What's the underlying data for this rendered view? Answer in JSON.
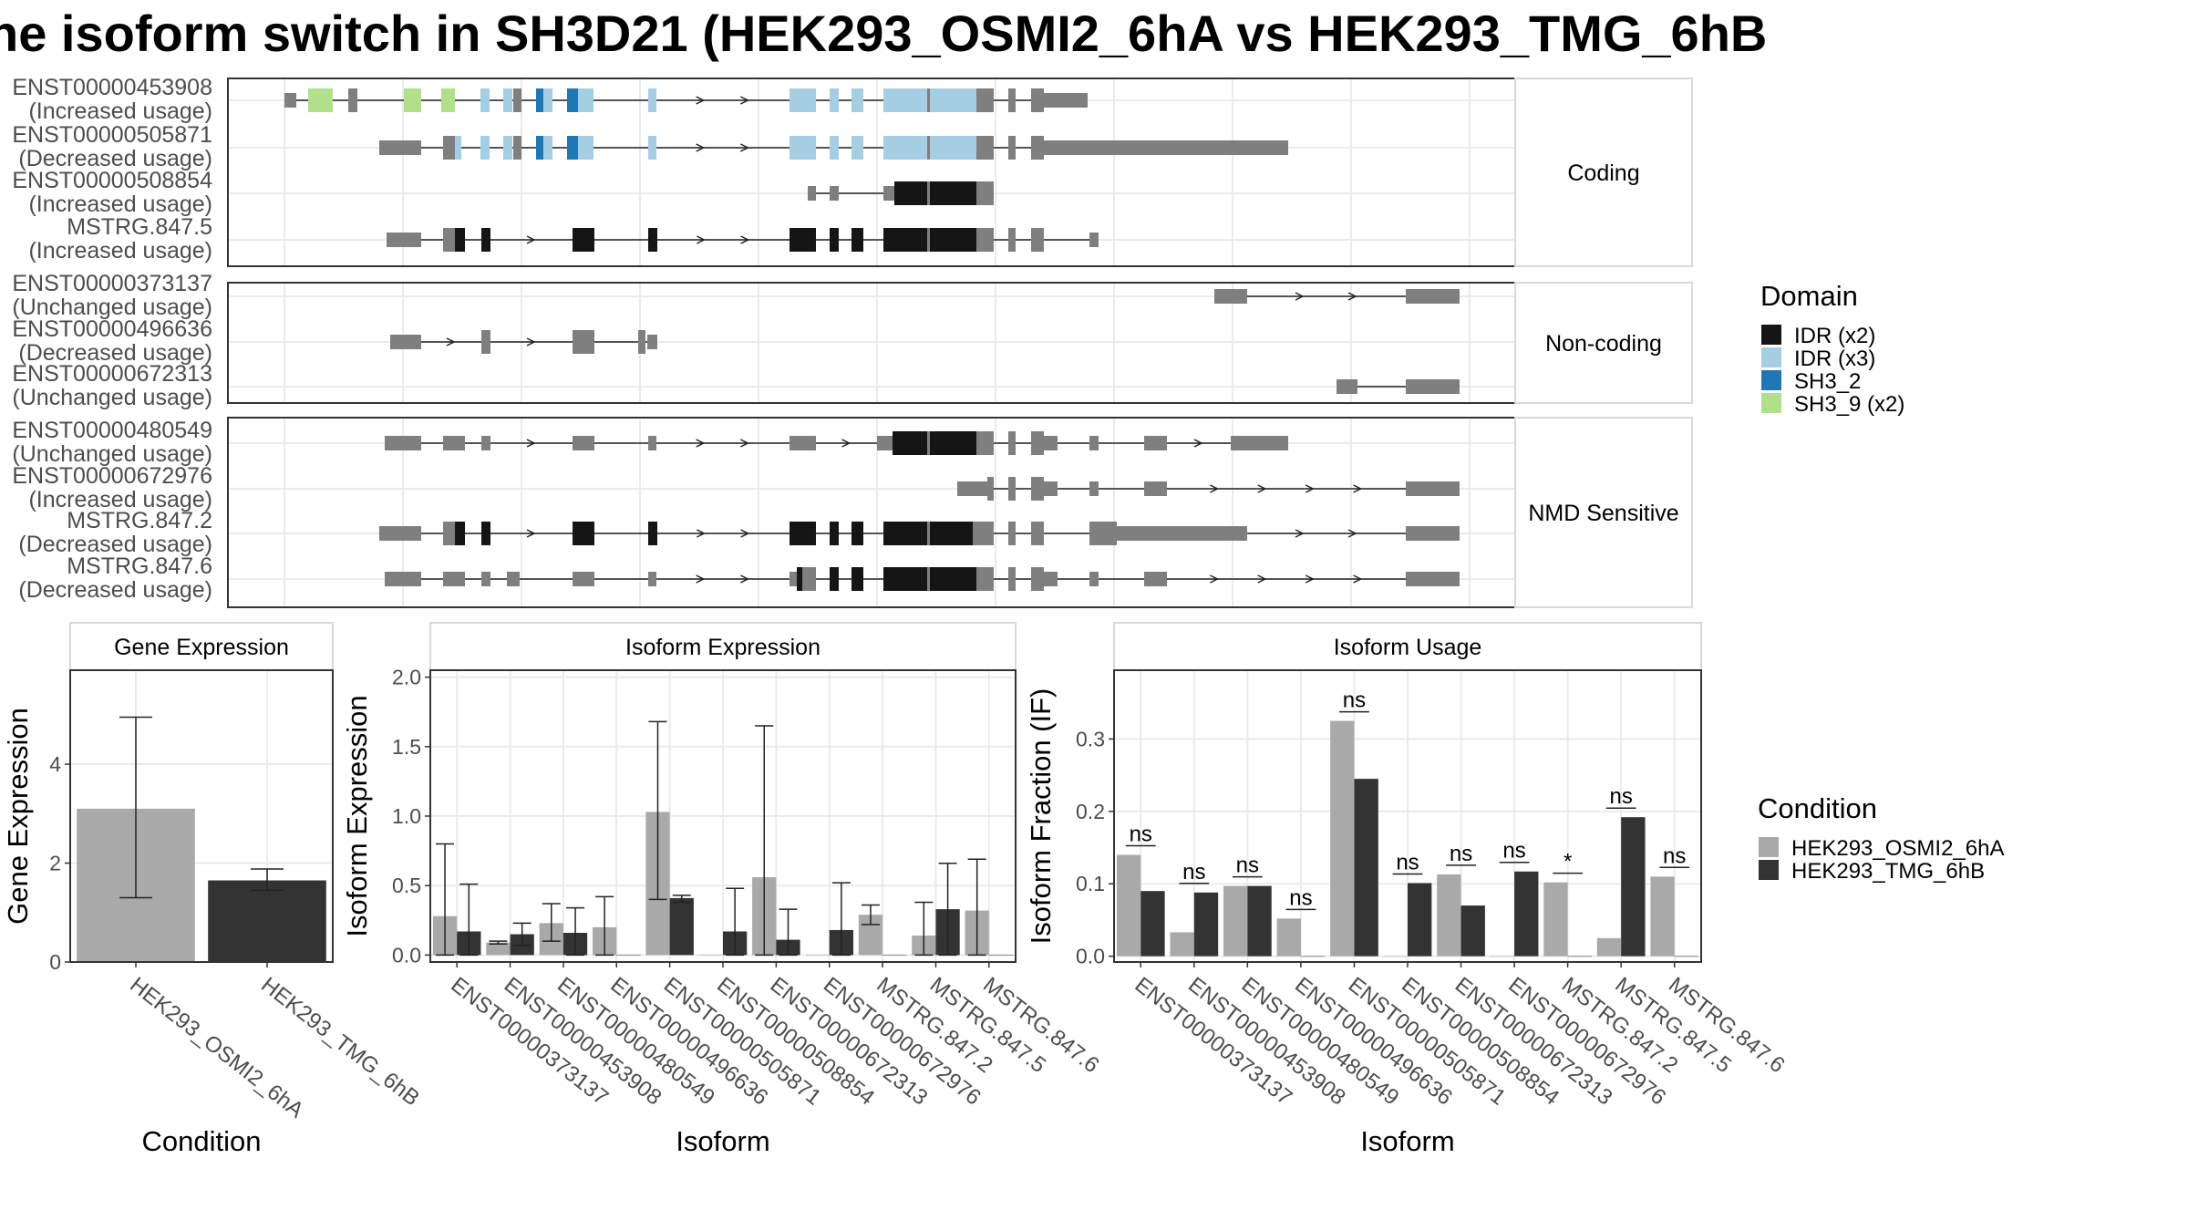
{
  "title": "he isoform switch in SH3D21 (HEK293_OSMI2_6hA vs HEK293_TMG_6hB",
  "colors": {
    "cond_a": "#A9A9A9",
    "cond_b": "#333333",
    "structure_gray": "#7F7F7F",
    "domains": {
      "IDR (x2)": "#151515",
      "IDR (x3)": "#A6CEE3",
      "SH3_2": "#1F78B4",
      "SH3_9 (x2)": "#B2DF8A"
    }
  },
  "legends": {
    "domain": {
      "title": "Domain",
      "items": [
        "IDR (x2)",
        "IDR (x3)",
        "SH3_2",
        "SH3_9 (x2)"
      ]
    },
    "condition": {
      "title": "Condition",
      "items": [
        "HEK293_OSMI2_6hA",
        "HEK293_TMG_6hB"
      ]
    }
  },
  "structure": {
    "panels": [
      {
        "label": "Coding",
        "transcripts": [
          {
            "id": "ENST00000453908",
            "status": "(Increased usage)"
          },
          {
            "id": "ENST00000505871",
            "status": "(Decreased usage)"
          },
          {
            "id": "ENST00000508854",
            "status": "(Increased usage)"
          },
          {
            "id": "MSTRG.847.5",
            "status": "(Increased usage)"
          }
        ]
      },
      {
        "label": "Non-coding",
        "transcripts": [
          {
            "id": "ENST00000373137",
            "status": "(Unchanged usage)"
          },
          {
            "id": "ENST00000496636",
            "status": "(Decreased usage)"
          },
          {
            "id": "ENST00000672313",
            "status": "(Unchanged usage)"
          }
        ]
      },
      {
        "label": "NMD Sensitive",
        "transcripts": [
          {
            "id": "ENST00000480549",
            "status": "(Unchanged usage)"
          },
          {
            "id": "ENST00000672976",
            "status": "(Increased usage)"
          },
          {
            "id": "MSTRG.847.2",
            "status": "(Decreased usage)"
          },
          {
            "id": "MSTRG.847.6",
            "status": "(Decreased usage)"
          }
        ]
      }
    ]
  },
  "chart_data": [
    {
      "type": "bar",
      "title": "Gene Expression",
      "xlabel": "Condition",
      "ylabel": "Gene Expression",
      "ylim": [
        0,
        5.9
      ],
      "yticks": [
        0,
        2,
        4
      ],
      "categories": [
        "HEK293_OSMI2_6hA",
        "HEK293_TMG_6hB"
      ],
      "values": [
        3.1,
        1.65
      ],
      "error_low": [
        1.3,
        1.45
      ],
      "error_high": [
        4.95,
        1.88
      ]
    },
    {
      "type": "bar",
      "title": "Isoform Expression",
      "xlabel": "Isoform",
      "ylabel": "Isoform Expression",
      "ylim": [
        -0.05,
        2.05
      ],
      "yticks": [
        0.0,
        0.5,
        1.0,
        1.5,
        2.0
      ],
      "tick_labels": [
        "0.0",
        "0.5",
        "1.0",
        "1.5",
        "2.0"
      ],
      "categories": [
        "ENST00000373137",
        "ENST00000453908",
        "ENST00000480549",
        "ENST00000496636",
        "ENST00000505871",
        "ENST00000508854",
        "ENST00000672313",
        "ENST00000672976",
        "MSTRG.847.2",
        "MSTRG.847.5",
        "MSTRG.847.6"
      ],
      "series": [
        {
          "name": "HEK293_OSMI2_6hA",
          "values": [
            0.28,
            0.09,
            0.23,
            0.2,
            1.03,
            0.0,
            0.56,
            0.0,
            0.29,
            0.14,
            0.32
          ],
          "error_low": [
            0.0,
            0.08,
            0.1,
            0.0,
            0.4,
            null,
            0.0,
            null,
            0.22,
            0.0,
            0.0
          ],
          "error_high": [
            0.8,
            0.1,
            0.37,
            0.42,
            1.68,
            null,
            1.65,
            null,
            0.36,
            0.38,
            0.69
          ]
        },
        {
          "name": "HEK293_TMG_6hB",
          "values": [
            0.17,
            0.15,
            0.16,
            0.0,
            0.41,
            0.17,
            0.11,
            0.18,
            0.0,
            0.33,
            0.0
          ],
          "error_low": [
            0.0,
            0.07,
            0.0,
            null,
            0.38,
            0.0,
            0.0,
            0.0,
            null,
            0.0,
            null
          ],
          "error_high": [
            0.51,
            0.23,
            0.34,
            null,
            0.43,
            0.48,
            0.33,
            0.52,
            null,
            0.66,
            null
          ]
        }
      ]
    },
    {
      "type": "bar",
      "title": "Isoform Usage",
      "xlabel": "Isoform",
      "ylabel": "Isoform Fraction (IF)",
      "ylim": [
        -0.008,
        0.395
      ],
      "yticks": [
        0.0,
        0.1,
        0.2,
        0.3
      ],
      "tick_labels": [
        "0.0",
        "0.1",
        "0.2",
        "0.3"
      ],
      "categories": [
        "ENST00000373137",
        "ENST00000453908",
        "ENST00000480549",
        "ENST00000496636",
        "ENST00000505871",
        "ENST00000508854",
        "ENST00000672313",
        "ENST00000672976",
        "MSTRG.847.2",
        "MSTRG.847.5",
        "MSTRG.847.6"
      ],
      "series": [
        {
          "name": "HEK293_OSMI2_6hA",
          "values": [
            0.14,
            0.033,
            0.097,
            0.052,
            0.325,
            0.0,
            0.113,
            0.0,
            0.102,
            0.025,
            0.11
          ]
        },
        {
          "name": "HEK293_TMG_6hB",
          "values": [
            0.09,
            0.088,
            0.097,
            0.0,
            0.245,
            0.101,
            0.07,
            0.117,
            0.0,
            0.192,
            0.0
          ]
        }
      ],
      "significance": [
        "ns",
        "ns",
        "ns",
        "ns",
        "ns",
        "ns",
        "ns",
        "ns",
        "*",
        "ns",
        "ns"
      ]
    }
  ]
}
